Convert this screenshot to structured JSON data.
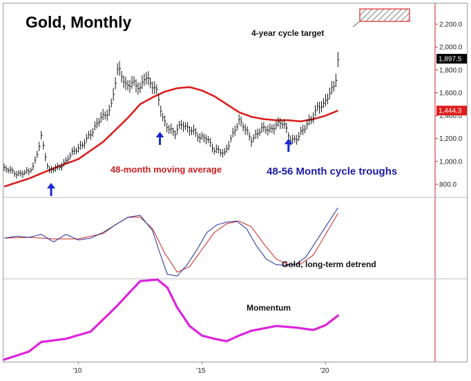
{
  "chart_data": [
    {
      "type": "bar",
      "title": "Gold, Monthly",
      "subtitle": "",
      "xlabel": "",
      "ylabel": "",
      "x_ticks": [
        "'10",
        "'15",
        "'20"
      ],
      "x_tick_values": [
        2010,
        2015,
        2020
      ],
      "xlim": [
        2007.0,
        2024.4
      ],
      "ylim": [
        680,
        2380
      ],
      "y_ticks": [
        "800.0",
        "1,000.0",
        "1,200.0",
        "1,400.0",
        "1,600.0",
        "1,800.0",
        "2,000.0",
        "2,200.0"
      ],
      "y_tick_values": [
        800,
        1000,
        1200,
        1400,
        1600,
        1800,
        2000,
        2200
      ],
      "grid": false,
      "legend": "none",
      "last_price_label": "1,897.5",
      "last_price": 1897.5,
      "ma_value_label": "1,444.3",
      "ma_value": 1444.3,
      "series": [
        {
          "name": "",
          "kind": "monthly bars (close)",
          "color": "#111111",
          "x": [
            2007.0,
            2007.5,
            2008.0,
            2008.2,
            2008.5,
            2008.8,
            2009.0,
            2009.5,
            2009.9,
            2010.3,
            2010.6,
            2010.9,
            2011.3,
            2011.6,
            2011.7,
            2011.9,
            2012.2,
            2012.5,
            2012.7,
            2012.9,
            2013.2,
            2013.4,
            2013.6,
            2013.9,
            2014.2,
            2014.6,
            2014.9,
            2015.2,
            2015.5,
            2015.9,
            2016.2,
            2016.5,
            2016.8,
            2017.0,
            2017.4,
            2017.8,
            2018.0,
            2018.3,
            2018.6,
            2018.9,
            2019.2,
            2019.5,
            2019.7,
            2019.9,
            2020.2,
            2020.4,
            2020.5
          ],
          "values": [
            930,
            900,
            900,
            960,
            1230,
            900,
            930,
            1000,
            1100,
            1190,
            1250,
            1400,
            1440,
            1800,
            1810,
            1680,
            1670,
            1630,
            1780,
            1690,
            1580,
            1390,
            1320,
            1230,
            1330,
            1280,
            1190,
            1220,
            1100,
            1060,
            1230,
            1340,
            1270,
            1200,
            1270,
            1290,
            1330,
            1320,
            1190,
            1220,
            1290,
            1410,
            1500,
            1470,
            1600,
            1720,
            1897.5
          ]
        },
        {
          "name": "48-month moving average",
          "kind": "line",
          "color": "#dd1c1c",
          "x": [
            2007.0,
            2008.0,
            2009.0,
            2010.0,
            2011.0,
            2012.0,
            2012.5,
            2013.0,
            2013.5,
            2014.0,
            2014.5,
            2015.0,
            2015.5,
            2016.0,
            2016.5,
            2017.0,
            2017.5,
            2018.0,
            2018.5,
            2019.0,
            2019.5,
            2020.0,
            2020.5
          ],
          "values": [
            780,
            850,
            940,
            1020,
            1170,
            1380,
            1500,
            1560,
            1610,
            1640,
            1650,
            1620,
            1570,
            1500,
            1430,
            1390,
            1370,
            1360,
            1360,
            1350,
            1370,
            1400,
            1444.3
          ]
        }
      ]
    },
    {
      "type": "line",
      "title": "Gold, long-term detrend",
      "legend": "none",
      "grid": false,
      "xlim": [
        2007.0,
        2024.4
      ],
      "ylim": [
        -1,
        1
      ],
      "series": [
        {
          "name": "",
          "color": "#1a2a99",
          "x": [
            2007.0,
            2007.5,
            2008.0,
            2008.5,
            2009.0,
            2009.5,
            2010.0,
            2010.5,
            2011.0,
            2011.5,
            2012.0,
            2012.5,
            2013.0,
            2013.3,
            2013.6,
            2014.0,
            2014.4,
            2014.8,
            2015.2,
            2015.6,
            2016.0,
            2016.4,
            2016.8,
            2017.2,
            2017.6,
            2018.0,
            2018.4,
            2018.8,
            2019.2,
            2019.6,
            2020.0,
            2020.5
          ],
          "values": [
            0.0,
            0.05,
            0.02,
            0.1,
            -0.1,
            0.1,
            -0.05,
            0.0,
            0.15,
            0.35,
            0.55,
            0.6,
            0.2,
            -0.4,
            -0.95,
            -1.0,
            -0.7,
            -0.3,
            0.15,
            0.35,
            0.42,
            0.45,
            0.25,
            -0.2,
            -0.55,
            -0.7,
            -0.72,
            -0.68,
            -0.5,
            -0.1,
            0.3,
            0.8
          ]
        },
        {
          "name": "",
          "color": "#cc2222",
          "x": [
            2007.0,
            2008.0,
            2009.0,
            2010.0,
            2011.0,
            2011.5,
            2012.0,
            2012.5,
            2013.0,
            2013.5,
            2014.0,
            2014.5,
            2015.0,
            2015.5,
            2016.0,
            2016.5,
            2017.0,
            2017.5,
            2018.0,
            2018.5,
            2019.0,
            2019.5,
            2020.0,
            2020.5
          ],
          "values": [
            0.0,
            0.02,
            -0.02,
            -0.02,
            0.12,
            0.35,
            0.55,
            0.55,
            0.25,
            -0.4,
            -0.9,
            -0.75,
            -0.3,
            0.15,
            0.38,
            0.45,
            0.3,
            -0.15,
            -0.55,
            -0.7,
            -0.68,
            -0.45,
            0.1,
            0.65
          ]
        }
      ]
    },
    {
      "type": "line",
      "title": "Momentum",
      "legend": "none",
      "grid": false,
      "xlim": [
        2007.0,
        2024.4
      ],
      "ylim": [
        0,
        1
      ],
      "series": [
        {
          "name": "",
          "color": "#dd22dd",
          "x": [
            2007.0,
            2008.0,
            2008.5,
            2009.5,
            2010.5,
            2011.5,
            2012.5,
            2013.2,
            2013.6,
            2014.0,
            2014.5,
            2015.0,
            2015.5,
            2016.0,
            2016.5,
            2017.0,
            2018.0,
            2018.8,
            2019.5,
            2020.0,
            2020.5
          ],
          "values": [
            0.0,
            0.1,
            0.22,
            0.26,
            0.35,
            0.65,
            0.98,
            1.0,
            0.9,
            0.65,
            0.42,
            0.3,
            0.26,
            0.23,
            0.3,
            0.36,
            0.42,
            0.4,
            0.37,
            0.43,
            0.55
          ]
        }
      ]
    }
  ],
  "annotations": {
    "cycle_target": "4-year cycle target",
    "ma_label": "48-month moving average",
    "troughs_label": "48-56 Month cycle troughs",
    "troughs_x": [
      2008.9,
      2013.3,
      2018.5
    ]
  },
  "colors": {
    "price_bars": "#111111",
    "moving_average": "#dd1c1c",
    "detrend_a": "#1a2a99",
    "detrend_b": "#cc2222",
    "momentum": "#dd22dd",
    "trough_arrows": "#1a2ad0",
    "axis": "#cc2222",
    "badge_price": "#000000",
    "badge_ma": "#dd1c1c"
  }
}
